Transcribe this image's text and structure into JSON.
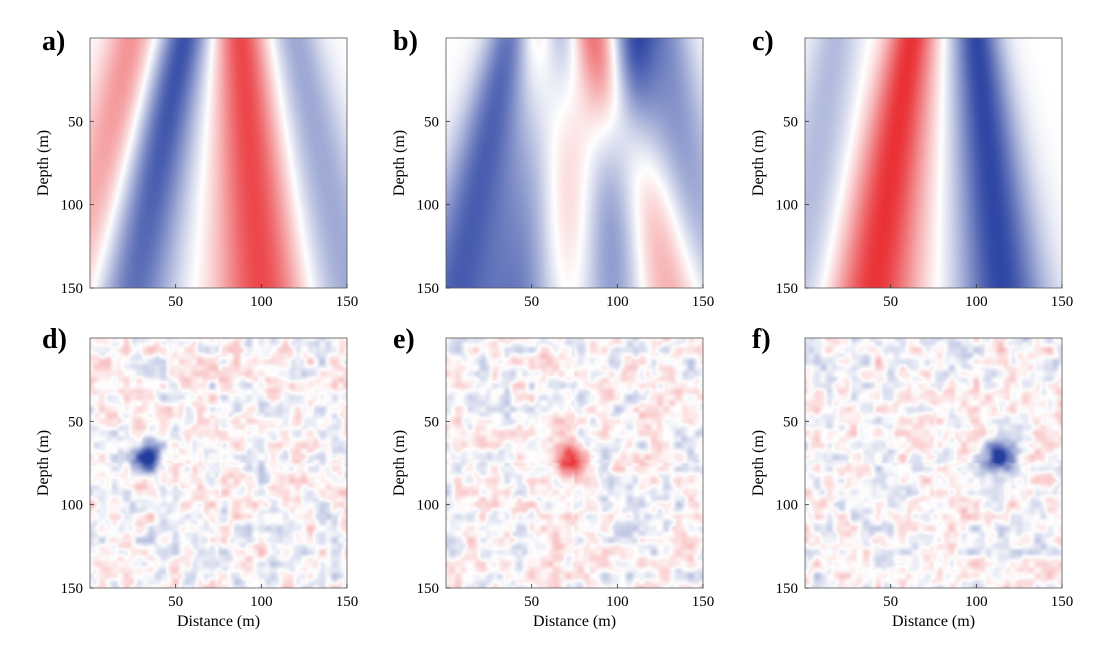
{
  "figure": {
    "panel_labels": [
      "a)",
      "b)",
      "c)",
      "d)",
      "e)",
      "f)"
    ],
    "ylabel": "Depth (m)",
    "xlabel": "Distance (m)",
    "colors": {
      "positive": "#e8262b",
      "negative": "#243d9f",
      "zero": "#ffffff"
    }
  },
  "chart_data": [
    {
      "type": "heatmap",
      "panel": "a)",
      "title": "",
      "xlabel": "",
      "ylabel": "Depth (m)",
      "xlim": [
        0,
        150
      ],
      "ylim": [
        0,
        150
      ],
      "xticks": [
        50,
        100,
        150
      ],
      "yticks": [
        50,
        100,
        150
      ],
      "y_axis_reversed": true,
      "grid": false,
      "colormap": "diverging blue-white-red",
      "features": [
        {
          "kind": "blue band",
          "x_top": 55,
          "x_bottom": 22,
          "sign": -1,
          "amplitude": 0.9
        },
        {
          "kind": "red band",
          "x_top": 88,
          "x_bottom": 100,
          "sign": 1,
          "amplitude": 0.85
        },
        {
          "kind": "red band",
          "x_top": 24,
          "x_bottom": -2,
          "sign": 1,
          "amplitude": 0.5
        },
        {
          "kind": "blue band",
          "x_top": 120,
          "x_bottom": 150,
          "sign": -1,
          "amplitude": 0.45
        }
      ]
    },
    {
      "type": "heatmap",
      "panel": "b)",
      "title": "",
      "xlabel": "",
      "ylabel": "Depth (m)",
      "xlim": [
        0,
        150
      ],
      "ylim": [
        0,
        150
      ],
      "xticks": [
        50,
        100,
        150
      ],
      "yticks": [
        50,
        100,
        150
      ],
      "y_axis_reversed": true,
      "grid": false,
      "colormap": "diverging blue-white-red",
      "features": [
        {
          "kind": "red band",
          "x_top": 56,
          "x_bottom": 72,
          "sign": 1,
          "amplitude": 0.8
        },
        {
          "kind": "blue band",
          "x_top": 64,
          "x_bottom": 50,
          "sign": -1,
          "amplitude": 0.85
        },
        {
          "kind": "blue band",
          "x_top": 38,
          "x_bottom": 5,
          "sign": -1,
          "amplitude": 0.8
        },
        {
          "kind": "red band",
          "x_top": 86,
          "x_bottom": 130,
          "sign": 1,
          "amplitude": 0.75
        },
        {
          "kind": "blue band",
          "x_top": 110,
          "x_bottom": 95,
          "sign": -1,
          "amplitude": 0.9
        },
        {
          "kind": "blue band",
          "x_top": 130,
          "x_bottom": 150,
          "sign": -1,
          "amplitude": 0.5
        }
      ]
    },
    {
      "type": "heatmap",
      "panel": "c)",
      "title": "",
      "xlabel": "",
      "ylabel": "Depth (m)",
      "xlim": [
        0,
        150
      ],
      "ylim": [
        0,
        150
      ],
      "xticks": [
        50,
        100,
        150
      ],
      "yticks": [
        50,
        100,
        150
      ],
      "y_axis_reversed": true,
      "grid": false,
      "colormap": "diverging blue-white-red",
      "features": [
        {
          "kind": "red band",
          "x_top": 62,
          "x_bottom": 40,
          "sign": 1,
          "amplitude": 0.95
        },
        {
          "kind": "blue band",
          "x_top": 100,
          "x_bottom": 115,
          "sign": -1,
          "amplitude": 0.95
        },
        {
          "kind": "blue band",
          "x_top": 18,
          "x_bottom": -5,
          "sign": -1,
          "amplitude": 0.35
        }
      ]
    },
    {
      "type": "heatmap",
      "panel": "d)",
      "title": "",
      "xlabel": "Distance (m)",
      "ylabel": "Depth (m)",
      "xlim": [
        0,
        150
      ],
      "ylim": [
        0,
        150
      ],
      "xticks": [
        50,
        100,
        150
      ],
      "yticks": [
        50,
        100,
        150
      ],
      "y_axis_reversed": true,
      "grid": false,
      "colormap": "diverging blue-white-red",
      "anomaly": {
        "x": 33,
        "depth": 72,
        "sign": -1,
        "amplitude": 1.0
      }
    },
    {
      "type": "heatmap",
      "panel": "e)",
      "title": "",
      "xlabel": "Distance (m)",
      "ylabel": "Depth (m)",
      "xlim": [
        0,
        150
      ],
      "ylim": [
        0,
        150
      ],
      "xticks": [
        50,
        100,
        150
      ],
      "yticks": [
        50,
        100,
        150
      ],
      "y_axis_reversed": true,
      "grid": false,
      "colormap": "diverging blue-white-red",
      "anomaly": {
        "x": 72,
        "depth": 72,
        "sign": 1,
        "amplitude": 1.0
      }
    },
    {
      "type": "heatmap",
      "panel": "f)",
      "title": "",
      "xlabel": "Distance (m)",
      "ylabel": "Depth (m)",
      "xlim": [
        0,
        150
      ],
      "ylim": [
        0,
        150
      ],
      "xticks": [
        50,
        100,
        150
      ],
      "yticks": [
        50,
        100,
        150
      ],
      "y_axis_reversed": true,
      "grid": false,
      "colormap": "diverging blue-white-red",
      "anomaly": {
        "x": 113,
        "depth": 72,
        "sign": -1,
        "amplitude": 1.0
      }
    }
  ]
}
